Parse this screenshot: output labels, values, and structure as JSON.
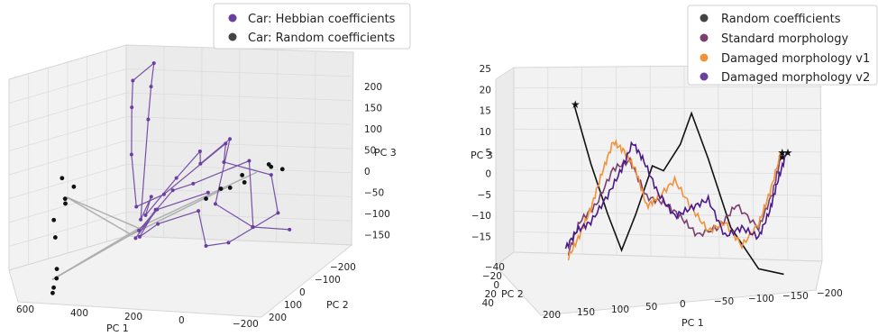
{
  "chart_data": [
    {
      "type": "scatter",
      "projection": "3d",
      "legend": {
        "placement": "top-right",
        "entries": [
          {
            "label": "Car: Hebbian coefficients",
            "color": "#6a3fa0"
          },
          {
            "label": "Car: Random coefficients",
            "color": "#444444"
          }
        ]
      },
      "xlabel": "PC 1",
      "ylabel": "PC 2",
      "zlabel": "PC 3",
      "x_ticks": [
        "600",
        "400",
        "200",
        "0",
        "−200"
      ],
      "y_ticks": [
        "−200",
        "−100",
        "0",
        "100",
        "200"
      ],
      "z_ticks": [
        "200",
        "150",
        "100",
        "50",
        "0",
        "−50",
        "−100",
        "−150"
      ],
      "xlim": [
        -250,
        700
      ],
      "ylim": [
        -250,
        250
      ],
      "zlim": [
        -180,
        230
      ],
      "grid": true,
      "series": [
        {
          "name": "Car: Hebbian coefficients",
          "style": "line+markers",
          "color": "#6a3fa0",
          "points": [
            [
              60,
              20,
              -90
            ],
            [
              150,
              -40,
              -20
            ],
            [
              300,
              60,
              30
            ],
            [
              420,
              -80,
              40
            ],
            [
              520,
              40,
              -60
            ],
            [
              620,
              -20,
              -80
            ],
            [
              560,
              100,
              -40
            ],
            [
              450,
              150,
              20
            ],
            [
              380,
              -30,
              100
            ],
            [
              300,
              20,
              60
            ],
            [
              200,
              -120,
              40
            ],
            [
              150,
              -60,
              0
            ],
            [
              100,
              40,
              -50
            ],
            [
              80,
              -20,
              -30
            ],
            [
              60,
              10,
              -70
            ],
            [
              40,
              -60,
              120
            ],
            [
              30,
              -90,
              180
            ],
            [
              20,
              -120,
              220
            ],
            [
              -20,
              -60,
              200
            ],
            [
              -10,
              -40,
              150
            ],
            [
              10,
              -10,
              60
            ],
            [
              50,
              20,
              -40
            ],
            [
              200,
              80,
              10
            ],
            [
              300,
              -120,
              60
            ],
            [
              420,
              60,
              80
            ],
            [
              520,
              -60,
              20
            ],
            [
              610,
              30,
              -30
            ],
            [
              480,
              120,
              -70
            ],
            [
              350,
              60,
              -100
            ],
            [
              250,
              -40,
              -60
            ],
            [
              120,
              0,
              -80
            ],
            [
              70,
              30,
              -100
            ],
            [
              90,
              -30,
              -60
            ],
            [
              40,
              10,
              -110
            ],
            [
              180,
              90,
              -20
            ],
            [
              330,
              20,
              0
            ]
          ]
        },
        {
          "name": "Car: Random coefficients",
          "style": "markers",
          "color": "#111111",
          "points": [
            [
              620,
              20,
              60
            ],
            [
              590,
              40,
              70
            ],
            [
              560,
              10,
              65
            ],
            [
              500,
              60,
              40
            ],
            [
              470,
              30,
              45
            ],
            [
              430,
              40,
              20
            ],
            [
              380,
              20,
              10
            ],
            [
              350,
              60,
              0
            ],
            [
              -180,
              40,
              0
            ],
            [
              -200,
              60,
              -20
            ],
            [
              -220,
              30,
              -40
            ],
            [
              -190,
              120,
              -150
            ],
            [
              -170,
              150,
              -160
            ],
            [
              -160,
              180,
              -170
            ],
            [
              -230,
              80,
              -60
            ],
            [
              -210,
              100,
              -90
            ],
            [
              -150,
              200,
              -175
            ],
            [
              -240,
              20,
              10
            ]
          ]
        },
        {
          "name": "",
          "style": "line",
          "color": "#a9a9a9",
          "points": [
            [
              420,
              30,
              20
            ],
            [
              30,
              20,
              -100
            ],
            [
              -200,
              50,
              -20
            ],
            [
              60,
              10,
              -90
            ],
            [
              -180,
              160,
              -160
            ],
            [
              80,
              0,
              -80
            ],
            [
              520,
              20,
              50
            ]
          ]
        }
      ]
    },
    {
      "type": "line",
      "projection": "3d",
      "legend": {
        "placement": "top-right",
        "entries": [
          {
            "label": "Random coefficients",
            "color": "#444444"
          },
          {
            "label": "Standard morphology",
            "color": "#7b3f6e"
          },
          {
            "label": "Damaged morphology v1",
            "color": "#f0923a"
          },
          {
            "label": "Damaged morphology v2",
            "color": "#6a3fa0"
          }
        ]
      },
      "xlabel": "PC 1",
      "ylabel": "PC 2",
      "zlabel": "PC 3",
      "x_ticks": [
        "200",
        "150",
        "100",
        "50",
        "0",
        "−50",
        "−100",
        "−150",
        "−200"
      ],
      "y_ticks": [
        "−40",
        "−20",
        "0",
        "20",
        "40"
      ],
      "z_ticks": [
        "25",
        "20",
        "15",
        "10",
        "5",
        "0",
        "−5",
        "−10",
        "−15"
      ],
      "xlim": [
        -220,
        220
      ],
      "ylim": [
        -45,
        45
      ],
      "zlim": [
        -18,
        26
      ],
      "grid": true,
      "series": [
        {
          "name": "Random coefficients",
          "color": "#111111",
          "points": [
            [
              180,
              0,
              18
            ],
            [
              150,
              0,
              5
            ],
            [
              120,
              0,
              -6
            ],
            [
              95,
              0,
              -14
            ],
            [
              70,
              0,
              -6
            ],
            [
              40,
              0,
              5
            ],
            [
              20,
              0,
              4
            ],
            [
              -10,
              0,
              10
            ],
            [
              -30,
              0,
              17
            ],
            [
              -60,
              0,
              7
            ],
            [
              -100,
              0,
              -8
            ],
            [
              -150,
              0,
              -17
            ],
            [
              -195,
              0,
              -18
            ]
          ],
          "start_marker": "star",
          "end_marker": "none"
        },
        {
          "name": "Standard morphology",
          "color": "#7b3f6e",
          "points": [
            [
              190,
              0,
              -15
            ],
            [
              170,
              0,
              -8
            ],
            [
              140,
              0,
              -4
            ],
            [
              110,
              0,
              4
            ],
            [
              80,
              0,
              6
            ],
            [
              50,
              0,
              -2
            ],
            [
              20,
              0,
              -3
            ],
            [
              -10,
              0,
              -6
            ],
            [
              -40,
              0,
              -10
            ],
            [
              -80,
              0,
              -8
            ],
            [
              -110,
              0,
              -3
            ],
            [
              -150,
              0,
              -8
            ],
            [
              -175,
              0,
              0
            ],
            [
              -190,
              0,
              8
            ]
          ],
          "end_marker": "star"
        },
        {
          "name": "Damaged morphology v1",
          "color": "#f0923a",
          "points": [
            [
              190,
              0,
              -16
            ],
            [
              170,
              0,
              -11
            ],
            [
              150,
              0,
              -5
            ],
            [
              130,
              0,
              3
            ],
            [
              110,
              0,
              10
            ],
            [
              90,
              0,
              8
            ],
            [
              70,
              0,
              4
            ],
            [
              50,
              0,
              -4
            ],
            [
              30,
              0,
              -2
            ],
            [
              0,
              0,
              2
            ],
            [
              -30,
              0,
              -4
            ],
            [
              -60,
              0,
              -9
            ],
            [
              -90,
              0,
              -7
            ],
            [
              -120,
              0,
              -12
            ],
            [
              -150,
              0,
              -7
            ],
            [
              -170,
              0,
              0
            ],
            [
              -190,
              0,
              9
            ]
          ],
          "end_marker": "star"
        },
        {
          "name": "Damaged morphology v2",
          "color": "#4b1a8a",
          "points": [
            [
              195,
              0,
              -14
            ],
            [
              175,
              0,
              -10
            ],
            [
              150,
              0,
              -8
            ],
            [
              120,
              0,
              -2
            ],
            [
              95,
              0,
              4
            ],
            [
              75,
              0,
              10
            ],
            [
              55,
              0,
              6
            ],
            [
              30,
              0,
              -1
            ],
            [
              0,
              0,
              -6
            ],
            [
              -30,
              0,
              -4
            ],
            [
              -60,
              0,
              -2
            ],
            [
              -90,
              0,
              -10
            ],
            [
              -120,
              0,
              -8
            ],
            [
              -150,
              0,
              -10
            ],
            [
              -170,
              0,
              -4
            ],
            [
              -185,
              0,
              3
            ],
            [
              -200,
              0,
              9
            ]
          ],
          "end_marker": "star"
        }
      ]
    }
  ]
}
